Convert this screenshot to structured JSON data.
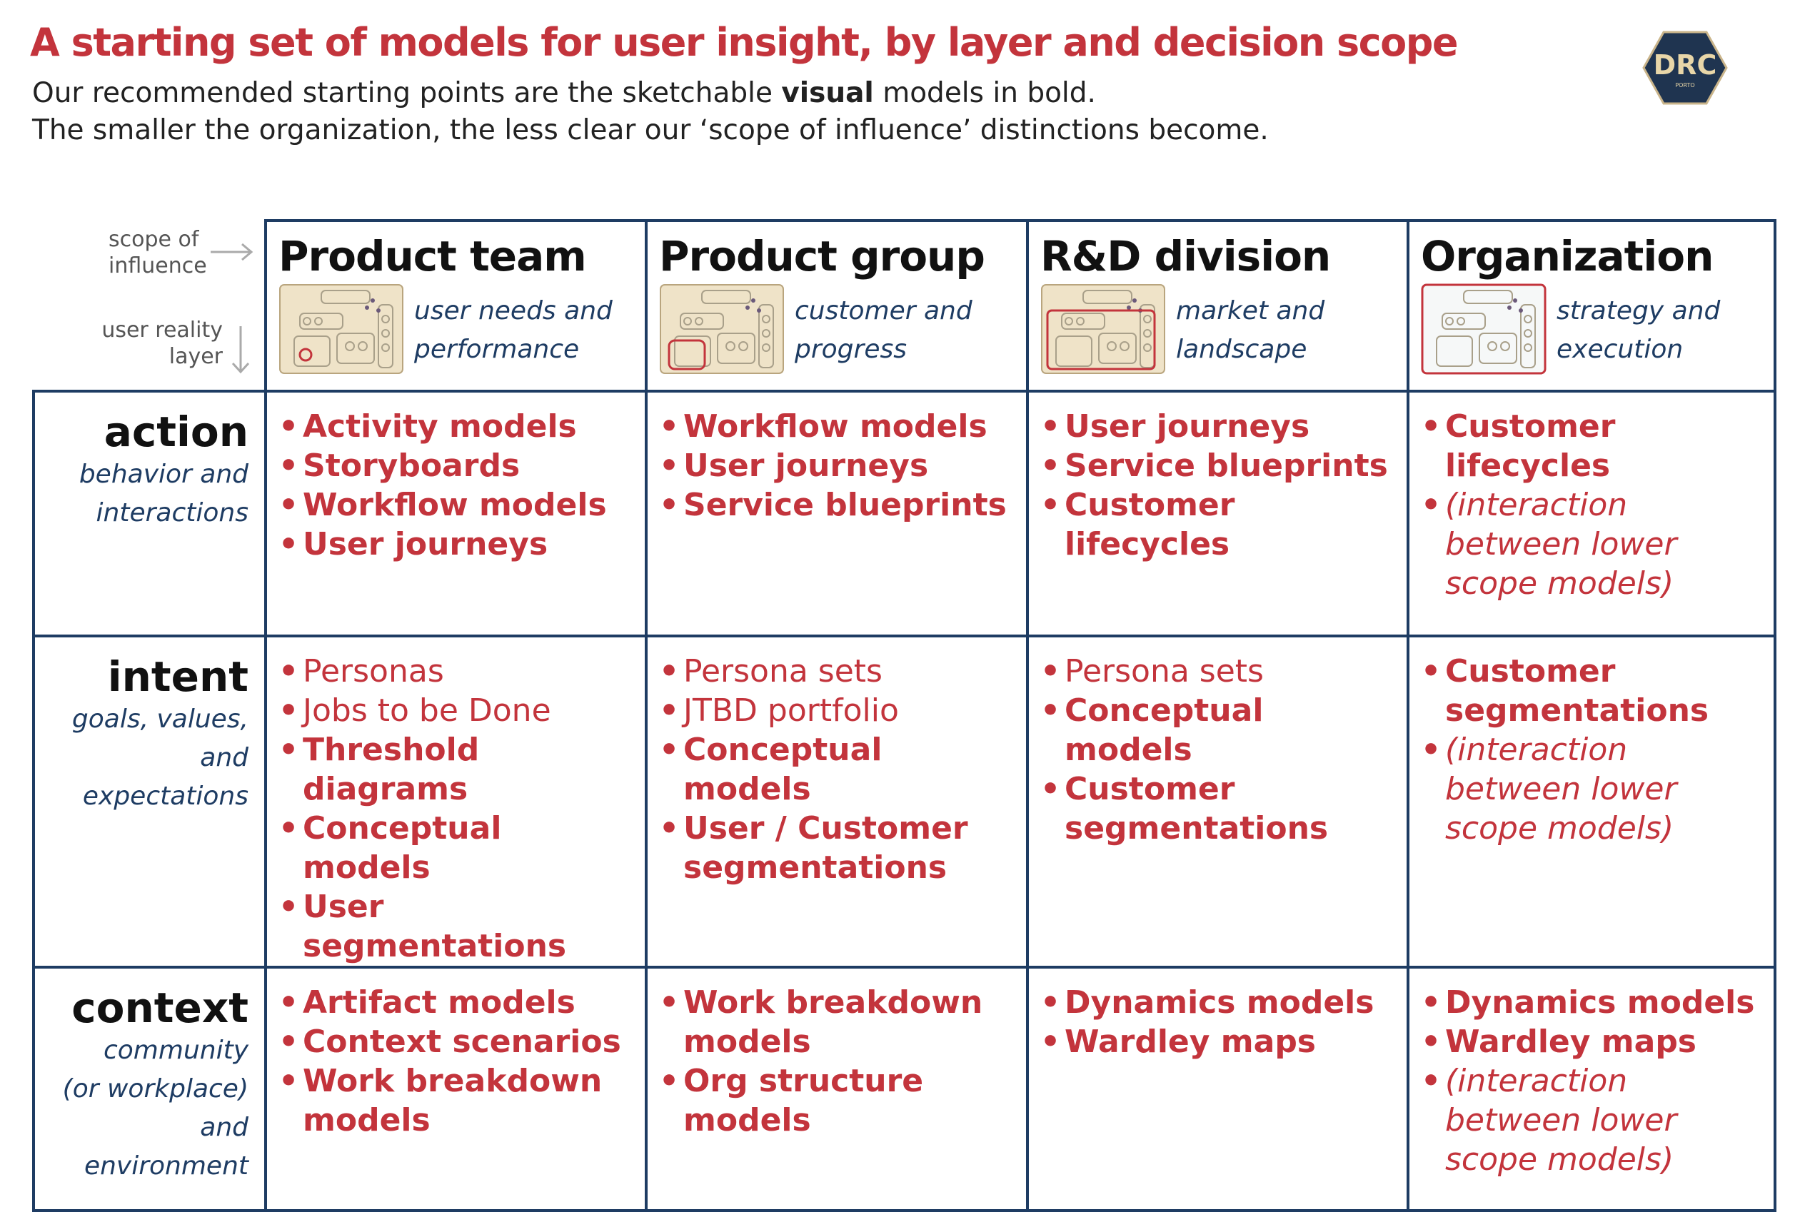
{
  "header": {
    "title": "A starting set of models for user insight, by layer and decision scope",
    "subtitle_line1": [
      "Our recommended starting points are the sketchable ",
      "visual",
      " models in bold."
    ],
    "subtitle_line2": "The smaller the organization, the less clear our ‘scope of influence’ distinctions become."
  },
  "logo": {
    "text": "DRC",
    "sub": "PORTO"
  },
  "table": {
    "x_axis_label": [
      "scope of",
      "influence"
    ],
    "y_axis_label": [
      "user reality",
      "layer"
    ],
    "columns": [
      {
        "title": "Product team",
        "subtitle": [
          "user needs and",
          "performance"
        ]
      },
      {
        "title": "Product group",
        "subtitle": [
          "customer and",
          "progress"
        ]
      },
      {
        "title": "R&D division",
        "subtitle": [
          "market and",
          "landscape"
        ]
      },
      {
        "title": "Organization",
        "subtitle": [
          "strategy and",
          "execution"
        ]
      }
    ],
    "rows": [
      {
        "name": "action",
        "description": [
          "behavior and",
          "interactions"
        ],
        "cells": [
          [
            {
              "text": "Activity models",
              "style": "bold"
            },
            {
              "text": "Storyboards",
              "style": "bold"
            },
            {
              "text": "Workflow models",
              "style": "bold"
            },
            {
              "text": "User journeys",
              "style": "bold"
            }
          ],
          [
            {
              "text": "Workflow models",
              "style": "bold"
            },
            {
              "text": "User journeys",
              "style": "bold"
            },
            {
              "text": "Service blueprints",
              "style": "bold"
            }
          ],
          [
            {
              "text": "User journeys",
              "style": "bold"
            },
            {
              "text": "Service blueprints",
              "style": "bold"
            },
            {
              "text": "Customer lifecycles",
              "style": "bold"
            }
          ],
          [
            {
              "text": "Customer lifecycles",
              "style": "bold"
            },
            {
              "text": "(interaction between lower scope models)",
              "style": "italic"
            }
          ]
        ]
      },
      {
        "name": "intent",
        "description": [
          "goals, values,",
          "and expectations"
        ],
        "cells": [
          [
            {
              "text": "Personas",
              "style": "regular"
            },
            {
              "text": "Jobs to be Done",
              "style": "regular"
            },
            {
              "text": "Threshold diagrams",
              "style": "bold"
            },
            {
              "text": "Conceptual models",
              "style": "bold"
            },
            {
              "text": "User segmentations",
              "style": "bold"
            }
          ],
          [
            {
              "text": "Persona sets",
              "style": "regular"
            },
            {
              "text": "JTBD portfolio",
              "style": "regular"
            },
            {
              "text": "Conceptual models",
              "style": "bold"
            },
            {
              "text": "User / Customer segmentations",
              "style": "bold"
            }
          ],
          [
            {
              "text": "Persona sets",
              "style": "regular"
            },
            {
              "text": "Conceptual models",
              "style": "bold"
            },
            {
              "text": "Customer segmentations",
              "style": "bold"
            }
          ],
          [
            {
              "text": "Customer segmentations",
              "style": "bold"
            },
            {
              "text": "(interaction between lower scope models)",
              "style": "italic"
            }
          ]
        ]
      },
      {
        "name": "context",
        "description": [
          "community",
          "(or workplace)",
          "and environment"
        ],
        "cells": [
          [
            {
              "text": "Artifact models",
              "style": "bold"
            },
            {
              "text": "Context scenarios",
              "style": "bold"
            },
            {
              "text": "Work breakdown models",
              "style": "bold"
            }
          ],
          [
            {
              "text": "Work breakdown models",
              "style": "bold"
            },
            {
              "text": "Org structure models",
              "style": "bold"
            }
          ],
          [
            {
              "text": "Dynamics models",
              "style": "bold"
            },
            {
              "text": "Wardley maps",
              "style": "bold"
            }
          ],
          [
            {
              "text": "Dynamics models",
              "style": "bold"
            },
            {
              "text": "Wardley maps",
              "style": "bold"
            },
            {
              "text": "(interaction between lower scope models)",
              "style": "italic"
            }
          ]
        ]
      }
    ]
  }
}
